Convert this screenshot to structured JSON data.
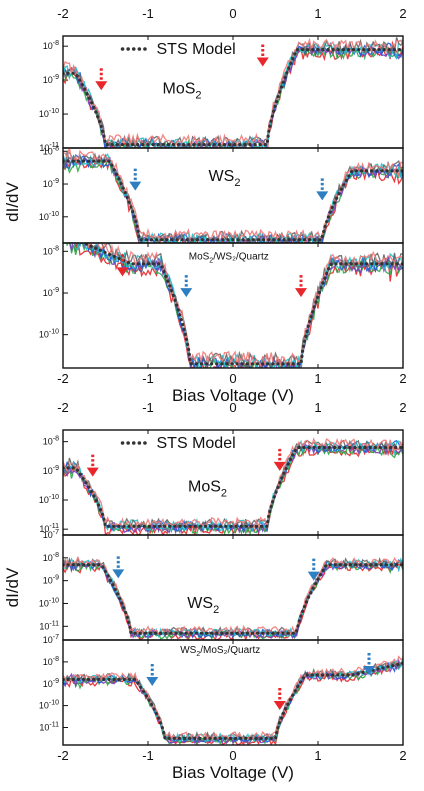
{
  "chart_data": [
    {
      "type": "line",
      "xlabel": "Bias Voltage (V)",
      "ylabel": "dI/dV",
      "legend": "STS Model",
      "xlim": [
        -2,
        2
      ],
      "x_ticks": [
        "-2",
        "-1",
        "0",
        "1",
        "2"
      ],
      "panels": [
        {
          "label": "MoS",
          "label_sub": "2",
          "label_rest": "",
          "ylim_log10": [
            -11,
            -7.7
          ],
          "y_ticks": [
            {
              "base": "10",
              "exp": "-8",
              "v": -8
            },
            {
              "base": "10",
              "exp": "-9",
              "v": -9
            },
            {
              "base": "10",
              "exp": "-10",
              "v": -10
            },
            {
              "base": "10",
              "exp": "-11",
              "v": -11
            }
          ],
          "edges": [
            -1.5,
            0.4
          ],
          "floor": -10.9,
          "left_top": -8.8,
          "right_top": -8.1,
          "arrows": [
            {
              "x": -1.55,
              "y": -9.3,
              "color": "#e8262b"
            },
            {
              "x": 0.35,
              "y": -8.6,
              "color": "#e8262b"
            }
          ],
          "legend_pos": "top",
          "label_pos": [
            -0.6,
            -9.4
          ]
        },
        {
          "label": "WS",
          "label_sub": "2",
          "label_rest": "",
          "ylim_log10": [
            -10.8,
            -7.9
          ],
          "y_ticks": [
            {
              "base": "10",
              "exp": "-8",
              "v": -8
            },
            {
              "base": "10",
              "exp": "-9",
              "v": -9
            },
            {
              "base": "10",
              "exp": "-10",
              "v": -10
            }
          ],
          "edges": [
            -1.1,
            1.05
          ],
          "floor": -10.7,
          "left_top": -8.3,
          "right_top": -8.6,
          "arrows": [
            {
              "x": -1.15,
              "y": -9.2,
              "color": "#2e7fc1"
            },
            {
              "x": 1.05,
              "y": -9.5,
              "color": "#2e7fc1"
            }
          ],
          "label_pos": [
            -0.1,
            -8.9
          ]
        },
        {
          "label": "MoS",
          "label_sub": "2",
          "label_rest": "/WS₂/Quartz",
          "small": true,
          "ylim_log10": [
            -10.8,
            -7.8
          ],
          "y_ticks": [
            {
              "base": "10",
              "exp": "-8",
              "v": -8
            },
            {
              "base": "10",
              "exp": "-9",
              "v": -9
            },
            {
              "base": "10",
              "exp": "-10",
              "v": -10
            }
          ],
          "edges": [
            -0.5,
            0.8
          ],
          "floor": -10.7,
          "left_top": -8.3,
          "right_top": -8.3,
          "shoulder": [
            -1.2,
            -9.1
          ],
          "arrows": [
            {
              "x": -1.3,
              "y": -8.6,
              "color": "#e8262b"
            },
            {
              "x": -0.55,
              "y": -9.1,
              "color": "#2e7fc1"
            },
            {
              "x": 0.8,
              "y": -9.1,
              "color": "#e8262b"
            }
          ],
          "label_pos": [
            -0.05,
            -8.2
          ]
        }
      ]
    },
    {
      "type": "line",
      "xlabel": "Bias Voltage (V)",
      "ylabel": "dI/dV",
      "legend": "STS Model",
      "xlim": [
        -2,
        2
      ],
      "x_ticks": [
        "-2",
        "-1",
        "0",
        "1",
        "2"
      ],
      "panels": [
        {
          "label": "MoS",
          "label_sub": "2",
          "label_rest": "",
          "ylim_log10": [
            -11.2,
            -7.6
          ],
          "y_ticks": [
            {
              "base": "10",
              "exp": "-8",
              "v": -8
            },
            {
              "base": "10",
              "exp": "-9",
              "v": -9
            },
            {
              "base": "10",
              "exp": "-10",
              "v": -10
            },
            {
              "base": "10",
              "exp": "-11",
              "v": -11
            }
          ],
          "edges": [
            -1.5,
            0.4
          ],
          "floor": -10.9,
          "left_top": -8.9,
          "right_top": -8.2,
          "arrows": [
            {
              "x": -1.65,
              "y": -9.2,
              "color": "#e8262b"
            },
            {
              "x": 0.55,
              "y": -9.0,
              "color": "#e8262b"
            }
          ],
          "legend_pos": "top",
          "label_pos": [
            -0.3,
            -9.7
          ]
        },
        {
          "label": "WS",
          "label_sub": "2",
          "label_rest": "",
          "ylim_log10": [
            -11.6,
            -7.0
          ],
          "y_ticks": [
            {
              "base": "10",
              "exp": "-7",
              "v": -7
            },
            {
              "base": "10",
              "exp": "-8",
              "v": -8
            },
            {
              "base": "10",
              "exp": "-9",
              "v": -9
            },
            {
              "base": "10",
              "exp": "-10",
              "v": -10
            },
            {
              "base": "10",
              "exp": "-11",
              "v": -11
            }
          ],
          "edges": [
            -1.2,
            0.75
          ],
          "floor": -11.3,
          "left_top": -8.3,
          "right_top": -8.3,
          "arrows": [
            {
              "x": -1.35,
              "y": -8.9,
              "color": "#2e7fc1"
            },
            {
              "x": 0.95,
              "y": -9.0,
              "color": "#2e7fc1"
            }
          ],
          "label_pos": [
            -0.35,
            -10.2
          ]
        },
        {
          "label": "WS",
          "label_sub": "2",
          "label_rest": "/MoS₂/Quartz",
          "small": true,
          "ylim_log10": [
            -11.8,
            -7.0
          ],
          "y_ticks": [
            {
              "base": "10",
              "exp": "-7",
              "v": -7
            },
            {
              "base": "10",
              "exp": "-8",
              "v": -8
            },
            {
              "base": "10",
              "exp": "-9",
              "v": -9
            },
            {
              "base": "10",
              "exp": "-10",
              "v": -10
            },
            {
              "base": "10",
              "exp": "-11",
              "v": -11
            }
          ],
          "edges": [
            -0.8,
            0.5
          ],
          "floor": -11.5,
          "left_top": -8.8,
          "right_top": -8.6,
          "shoulder": [
            1.4,
            -8.9
          ],
          "arrows": [
            {
              "x": -0.95,
              "y": -9.1,
              "color": "#2e7fc1"
            },
            {
              "x": 0.55,
              "y": -10.2,
              "color": "#e8262b"
            },
            {
              "x": 1.6,
              "y": -8.6,
              "color": "#2e7fc1"
            }
          ],
          "label_pos": [
            -0.15,
            -7.6
          ]
        }
      ]
    }
  ],
  "colors": {
    "traces": [
      "#e8262b",
      "#2aa84a",
      "#7a3fbf",
      "#1f5fd6",
      "#22c3c9",
      "#666666",
      "#f07a7a"
    ],
    "model": "#333333",
    "frame": "#111111"
  }
}
